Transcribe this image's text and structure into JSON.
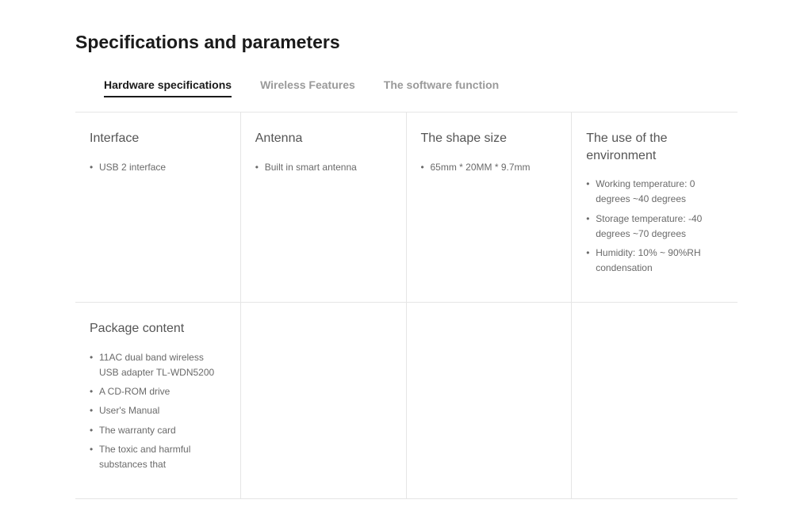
{
  "title": "Specifications and parameters",
  "tabs": [
    {
      "label": "Hardware specifications",
      "active": true
    },
    {
      "label": "Wireless Features",
      "active": false
    },
    {
      "label": "The software function",
      "active": false
    }
  ],
  "grid": [
    {
      "title": "Interface",
      "items": [
        "USB 2 interface"
      ]
    },
    {
      "title": "Antenna",
      "items": [
        "Built in smart antenna"
      ]
    },
    {
      "title": "The shape size",
      "items": [
        "65mm * 20MM * 9.7mm"
      ]
    },
    {
      "title": "The use of the environment",
      "items": [
        "Working temperature: 0 degrees ~40 degrees",
        "Storage temperature: -40 degrees ~70 degrees",
        "Humidity: 10% ~ 90%RH condensation"
      ]
    },
    {
      "title": "Package content",
      "items": [
        "11AC dual band wireless USB adapter TL-WDN5200",
        "A CD-ROM drive",
        "User's Manual",
        "The warranty card",
        "The toxic and harmful substances that"
      ]
    },
    {
      "title": "",
      "items": []
    },
    {
      "title": "",
      "items": []
    },
    {
      "title": "",
      "items": []
    }
  ],
  "colors": {
    "page_bg": "#ffffff",
    "title_color": "#1a1a1a",
    "tab_inactive": "#9a9a9a",
    "tab_active": "#1a1a1a",
    "border": "#e5e5e5",
    "cell_title": "#555555",
    "item_text": "#6a6a6a"
  }
}
